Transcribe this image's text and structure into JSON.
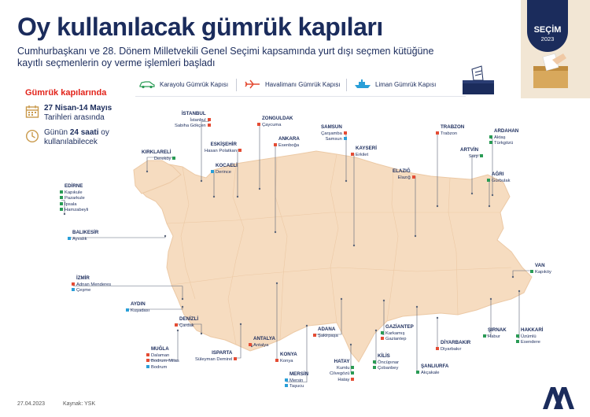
{
  "header": {
    "title": "Oy kullanılacak gümrük kapıları",
    "subtitle": "Cumhurbaşkanı ve 28. Dönem Milletvekili Genel Seçimi kapsamında yurt dışı seçmen kütüğüne kayıtlı seçmenlerin oy verme işlemleri başladı"
  },
  "badge": {
    "label": "SEÇİM",
    "year": "2023"
  },
  "legend": {
    "road": "Karayolu Gümrük Kapısı",
    "air": "Havalimanı Gümrük Kapısı",
    "sea": "Liman Gümrük Kapısı"
  },
  "colors": {
    "road": "#2a9b55",
    "air": "#e44c34",
    "sea": "#2a9fd8",
    "map": "#f6dcc0",
    "navy": "#1b2c5c"
  },
  "side": {
    "title": "Gümrük kapılarında",
    "date_strong": "27 Nisan-14 Mayıs",
    "date_rest": "Tarihleri arasında",
    "time_pre": "Günün ",
    "time_strong": "24 saati",
    "time_post": " oy",
    "time_rest": "kullanılabilecek"
  },
  "provinces": [
    {
      "name": "İSTANBUL",
      "gates": [
        {
          "n": "İstanbul",
          "t": "air"
        },
        {
          "n": "Sabiha Gökçen",
          "t": "air"
        }
      ]
    },
    {
      "name": "ZONGULDAK",
      "gates": [
        {
          "n": "Çaycuma",
          "t": "air"
        }
      ]
    },
    {
      "name": "ESKİŞEHİR",
      "gates": [
        {
          "n": "Hasan Polatkan",
          "t": "air"
        }
      ]
    },
    {
      "name": "ANKARA",
      "gates": [
        {
          "n": "Esenboğa",
          "t": "air"
        }
      ]
    },
    {
      "name": "SAMSUN",
      "gates": [
        {
          "n": "Çarşamba",
          "t": "air"
        },
        {
          "n": "Samsun",
          "t": "sea"
        }
      ]
    },
    {
      "name": "TRABZON",
      "gates": [
        {
          "n": "Trabzon",
          "t": "air"
        }
      ]
    },
    {
      "name": "ARTVİN",
      "gates": [
        {
          "n": "Sarp",
          "t": "road"
        }
      ]
    },
    {
      "name": "ARDAHAN",
      "gates": [
        {
          "n": "Aktaş",
          "t": "road"
        },
        {
          "n": "Türkgözü",
          "t": "road"
        }
      ]
    },
    {
      "name": "KIRKLARELİ",
      "gates": [
        {
          "n": "Dereköy",
          "t": "road"
        }
      ]
    },
    {
      "name": "KOCAELİ",
      "gates": [
        {
          "n": "Derince",
          "t": "sea"
        }
      ]
    },
    {
      "name": "KAYSERİ",
      "gates": [
        {
          "n": "Erkilet",
          "t": "air"
        }
      ]
    },
    {
      "name": "ELAZIĞ",
      "gates": [
        {
          "n": "Elazığ",
          "t": "air"
        }
      ]
    },
    {
      "name": "AĞRI",
      "gates": [
        {
          "n": "Gürbulak",
          "t": "road"
        }
      ]
    },
    {
      "name": "EDİRNE",
      "gates": [
        {
          "n": "Kapıkule",
          "t": "road"
        },
        {
          "n": "Pazarkule",
          "t": "road"
        },
        {
          "n": "İpsala",
          "t": "road"
        },
        {
          "n": "Hamzabeyli",
          "t": "road"
        }
      ]
    },
    {
      "name": "BALIKESİR",
      "gates": [
        {
          "n": "Ayvalık",
          "t": "sea"
        }
      ]
    },
    {
      "name": "VAN",
      "gates": [
        {
          "n": "Kapıköy",
          "t": "road"
        }
      ]
    },
    {
      "name": "İZMİR",
      "gates": [
        {
          "n": "Adnan Menderes",
          "t": "air"
        },
        {
          "n": "Çeşme",
          "t": "sea"
        }
      ]
    },
    {
      "name": "AYDIN",
      "gates": [
        {
          "n": "Kuşadası",
          "t": "sea"
        }
      ]
    },
    {
      "name": "DENİZLİ",
      "gates": [
        {
          "n": "Çardak",
          "t": "air"
        }
      ]
    },
    {
      "name": "MUĞLA",
      "gates": [
        {
          "n": "Dalaman",
          "t": "air"
        },
        {
          "n": "Bodrum-Milas",
          "t": "air"
        },
        {
          "n": "Bodrum",
          "t": "sea"
        }
      ]
    },
    {
      "name": "ISPARTA",
      "gates": [
        {
          "n": "Süleyman Demirel",
          "t": "air"
        }
      ]
    },
    {
      "name": "ANTALYA",
      "gates": [
        {
          "n": "Antalya",
          "t": "air"
        }
      ]
    },
    {
      "name": "KONYA",
      "gates": [
        {
          "n": "Konya",
          "t": "air"
        }
      ]
    },
    {
      "name": "MERSİN",
      "gates": [
        {
          "n": "Mersin",
          "t": "sea"
        },
        {
          "n": "Taşucu",
          "t": "sea"
        }
      ]
    },
    {
      "name": "ADANA",
      "gates": [
        {
          "n": "Şakirpaşa",
          "t": "air"
        }
      ]
    },
    {
      "name": "HATAY",
      "gates": [
        {
          "n": "Kumlu",
          "t": "road"
        },
        {
          "n": "Cilvegözü",
          "t": "road"
        },
        {
          "n": "Hatay",
          "t": "air"
        }
      ]
    },
    {
      "name": "KİLİS",
      "gates": [
        {
          "n": "Öncüpınar",
          "t": "road"
        },
        {
          "n": "Çobanbey",
          "t": "road"
        }
      ]
    },
    {
      "name": "GAZİANTEP",
      "gates": [
        {
          "n": "Karkamış",
          "t": "road"
        },
        {
          "n": "Gaziantep",
          "t": "air"
        }
      ]
    },
    {
      "name": "DİYARBAKIR",
      "gates": [
        {
          "n": "Diyarbakır",
          "t": "air"
        }
      ]
    },
    {
      "name": "ŞANLIURFA",
      "gates": [
        {
          "n": "Akçakale",
          "t": "road"
        }
      ]
    },
    {
      "name": "ŞIRNAK",
      "gates": [
        {
          "n": "Habur",
          "t": "road"
        }
      ]
    },
    {
      "name": "HAKKARİ",
      "gates": [
        {
          "n": "Üzümlü",
          "t": "road"
        },
        {
          "n": "Esendere",
          "t": "road"
        }
      ]
    }
  ],
  "footer": {
    "date": "27.04.2023",
    "source": "Kaynak: YSK"
  }
}
